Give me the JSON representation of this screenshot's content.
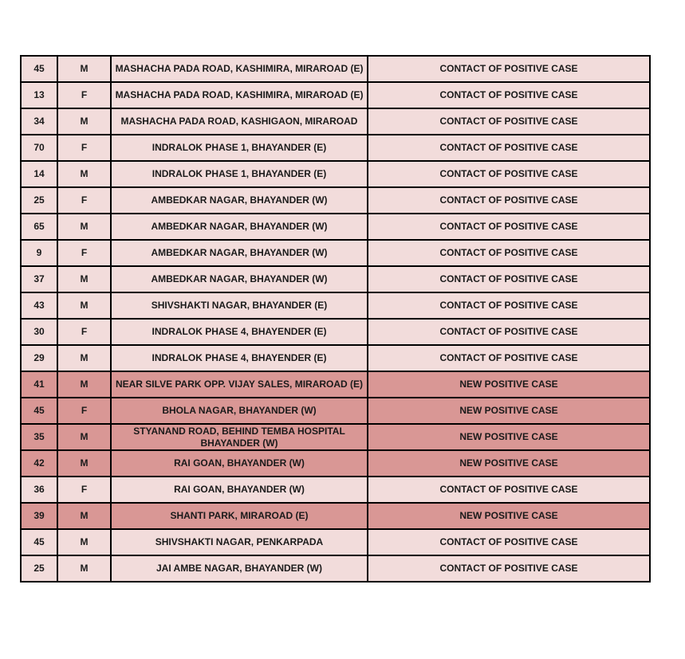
{
  "colors": {
    "contact_row": "#f2dcdb",
    "new_positive_row": "#d99795",
    "border": "#000000"
  },
  "rows": [
    {
      "age": "45",
      "sex": "M",
      "address": "MASHACHA PADA ROAD,  KASHIMIRA,  MIRAROAD (E)",
      "status": "CONTACT OF POSITIVE CASE"
    },
    {
      "age": "13",
      "sex": "F",
      "address": "MASHACHA PADA ROAD,  KASHIMIRA,  MIRAROAD (E)",
      "status": "CONTACT OF POSITIVE CASE"
    },
    {
      "age": "34",
      "sex": "M",
      "address": "MASHACHA PADA ROAD, KASHIGAON,  MIRAROAD",
      "status": "CONTACT OF POSITIVE CASE"
    },
    {
      "age": "70",
      "sex": "F",
      "address": "INDRALOK PHASE 1, BHAYANDER (E)",
      "status": "CONTACT OF POSITIVE CASE"
    },
    {
      "age": "14",
      "sex": "M",
      "address": "INDRALOK PHASE 1, BHAYANDER (E)",
      "status": "CONTACT OF POSITIVE CASE"
    },
    {
      "age": "25",
      "sex": "F",
      "address": "AMBEDKAR NAGAR, BHAYANDER (W)",
      "status": "CONTACT OF POSITIVE CASE"
    },
    {
      "age": "65",
      "sex": "M",
      "address": "AMBEDKAR NAGAR, BHAYANDER (W)",
      "status": "CONTACT OF POSITIVE CASE"
    },
    {
      "age": "9",
      "sex": "F",
      "address": "AMBEDKAR NAGAR, BHAYANDER (W)",
      "status": "CONTACT OF POSITIVE CASE"
    },
    {
      "age": "37",
      "sex": "M",
      "address": "AMBEDKAR NAGAR, BHAYANDER (W)",
      "status": "CONTACT OF POSITIVE CASE"
    },
    {
      "age": "43",
      "sex": "M",
      "address": "SHIVSHAKTI NAGAR, BHAYANDER  (E)",
      "status": "CONTACT OF POSITIVE CASE"
    },
    {
      "age": "30",
      "sex": "F",
      "address": "INDRALOK PHASE 4,  BHAYENDER (E)",
      "status": "CONTACT OF POSITIVE CASE"
    },
    {
      "age": "29",
      "sex": "M",
      "address": "INDRALOK PHASE 4,  BHAYENDER (E)",
      "status": "CONTACT OF POSITIVE CASE"
    },
    {
      "age": "41",
      "sex": "M",
      "address": "NEAR SILVE PARK OPP. VIJAY SALES, MIRAROAD (E)",
      "status": "NEW POSITIVE CASE"
    },
    {
      "age": "45",
      "sex": "F",
      "address": "BHOLA NAGAR, BHAYANDER (W)",
      "status": "NEW POSITIVE CASE"
    },
    {
      "age": "35",
      "sex": "M",
      "address": "STYANAND ROAD, BEHIND TEMBA HOSPITAL BHAYANDER (W)",
      "status": "NEW POSITIVE CASE"
    },
    {
      "age": "42",
      "sex": "M",
      "address": "RAI GOAN, BHAYANDER (W)",
      "status": "NEW POSITIVE CASE"
    },
    {
      "age": "36",
      "sex": "F",
      "address": "RAI GOAN, BHAYANDER (W)",
      "status": "CONTACT OF POSITIVE CASE"
    },
    {
      "age": "39",
      "sex": "M",
      "address": "SHANTI PARK, MIRAROAD (E)",
      "status": "NEW POSITIVE CASE"
    },
    {
      "age": "45",
      "sex": "M",
      "address": "SHIVSHAKTI NAGAR, PENKARPADA",
      "status": "CONTACT OF POSITIVE CASE"
    },
    {
      "age": "25",
      "sex": "M",
      "address": "JAI AMBE NAGAR, BHAYANDER (W)",
      "status": "CONTACT OF POSITIVE CASE"
    }
  ]
}
